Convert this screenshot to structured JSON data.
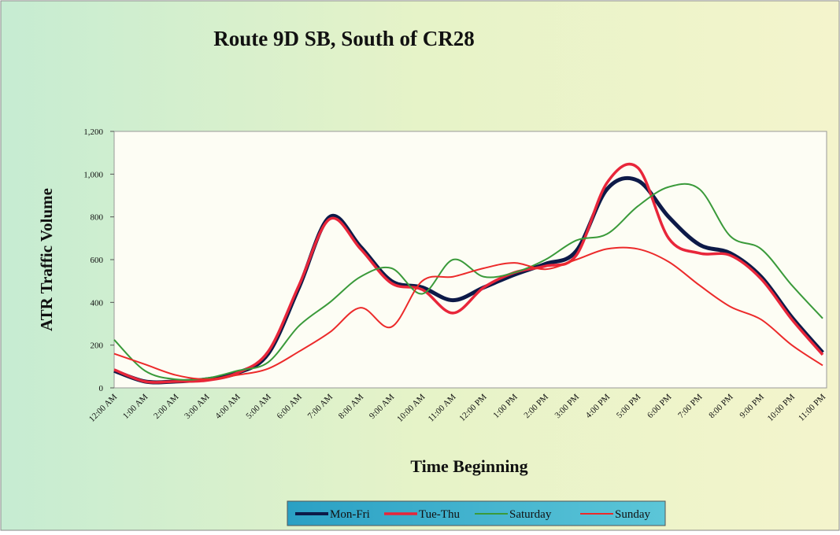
{
  "chart_data": {
    "type": "line",
    "title": "Route 9D SB, South of CR28",
    "x_label": "Time Beginning",
    "y_label": "ATR Traffic Volume",
    "categories": [
      "12:00 AM",
      "1:00 AM",
      "2:00 AM",
      "3:00 AM",
      "4:00 AM",
      "5:00 AM",
      "6:00 AM",
      "7:00 AM",
      "8:00 AM",
      "9:00 AM",
      "10:00 AM",
      "11:00 AM",
      "12:00 PM",
      "1:00 PM",
      "2:00 PM",
      "3:00 PM",
      "4:00 PM",
      "5:00 PM",
      "6:00 PM",
      "7:00 PM",
      "8:00 PM",
      "9:00 PM",
      "10:00 PM",
      "11:00 PM"
    ],
    "series": [
      {
        "name": "Mon-Fri",
        "color": "#0d1a48",
        "values": [
          80,
          30,
          30,
          40,
          70,
          160,
          470,
          800,
          660,
          500,
          470,
          410,
          470,
          530,
          580,
          640,
          930,
          970,
          800,
          670,
          630,
          520,
          330,
          165
        ]
      },
      {
        "name": "Tue-Thu",
        "color": "#e8263a",
        "values": [
          85,
          30,
          30,
          35,
          70,
          170,
          480,
          790,
          650,
          490,
          460,
          350,
          470,
          540,
          570,
          620,
          960,
          1030,
          700,
          630,
          620,
          510,
          320,
          155
        ]
      },
      {
        "name": "Saturday",
        "color": "#3a9a3a",
        "values": [
          225,
          80,
          40,
          45,
          80,
          120,
          290,
          400,
          520,
          560,
          440,
          600,
          520,
          540,
          600,
          690,
          720,
          850,
          940,
          930,
          710,
          650,
          480,
          325
        ]
      },
      {
        "name": "Sunday",
        "color": "#ec2a2a",
        "values": [
          160,
          110,
          60,
          40,
          60,
          90,
          170,
          260,
          375,
          285,
          500,
          520,
          560,
          585,
          555,
          600,
          650,
          650,
          590,
          480,
          380,
          320,
          200,
          105
        ]
      }
    ],
    "ylim": [
      0,
      1200
    ],
    "yticks": [
      0,
      200,
      400,
      600,
      800,
      {
        "value": 1000,
        "label": "1,000"
      },
      {
        "value": 1200,
        "label": "1,200"
      }
    ],
    "grid": false,
    "legend": "bottom"
  }
}
